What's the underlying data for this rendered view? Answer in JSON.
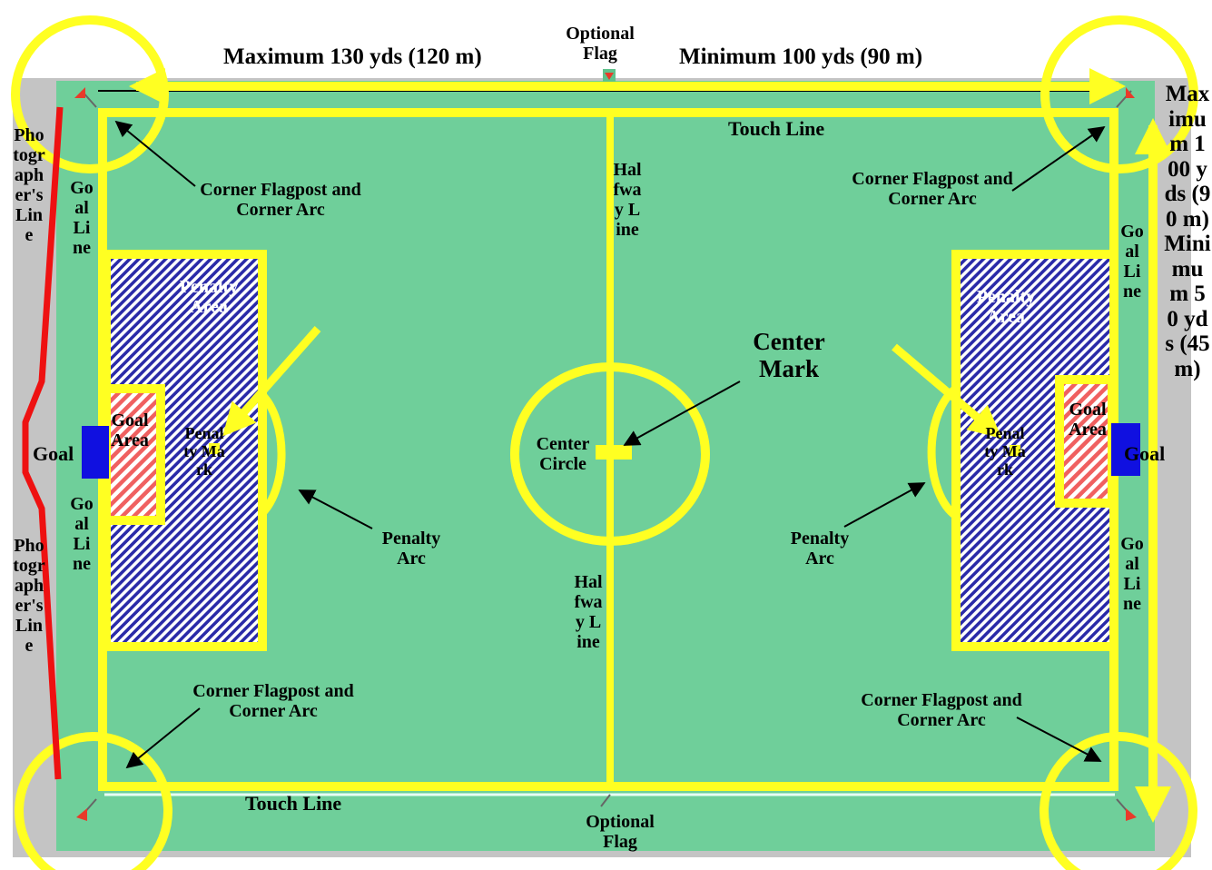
{
  "colors": {
    "surround": "#c4c4c4",
    "field": "#6fcf9a",
    "line": "#ffff22",
    "penalty_hatch_a": "#2a2aa8",
    "penalty_hatch_b": "#ffffff",
    "goal_hatch_a": "#f06060",
    "goal_hatch_b": "#ffffff",
    "goal": "#1010e0",
    "photographer_line": "#ee1111",
    "corner_flag": "#e83a2a",
    "arrow": "#000000"
  },
  "labels": {
    "max_length": "Maximum 130 yds (120 m)",
    "min_length": "Minimum 100 yds (90 m)",
    "optional_flag": "Optional Flag",
    "width": "Maximum 100 yds (90 m) Minimum 50 yds (45 m)",
    "touch_line": "Touch Line",
    "halfway_line": "Halfway Line",
    "corner_flagpost": "Corner Flagpost and Corner Arc",
    "goal_line": "Goal Line",
    "photographer_line": "Photographer's Line",
    "penalty_area": "Penalty Area",
    "penalty_mark": "Penalty Mark",
    "penalty_arc": "Penalty Arc",
    "goal_area": "Goal Area",
    "goal": "Goal",
    "center_mark": "Center Mark",
    "center_circle": "Center Circle"
  }
}
